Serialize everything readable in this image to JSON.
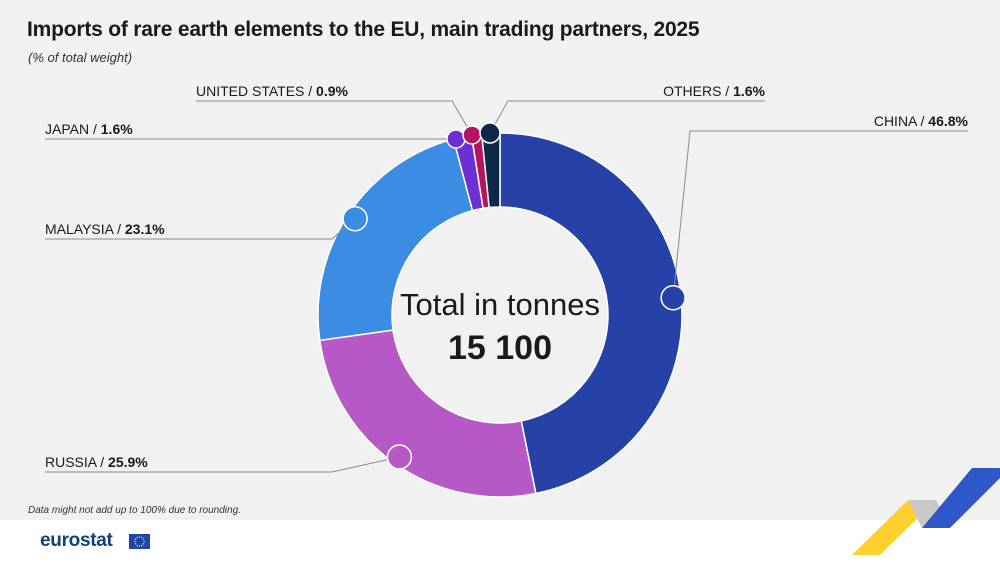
{
  "title": "Imports of rare earth elements to the EU, main trading partners, 2025",
  "subtitle": "(% of total weight)",
  "footnote": "Data might not add up to 100% due to rounding.",
  "logo": {
    "text": "eurostat"
  },
  "center": {
    "label": "Total in tonnes",
    "value": "15 100"
  },
  "chart_data": {
    "type": "pie",
    "variant": "donut",
    "unit": "% of total weight",
    "slices": [
      {
        "name": "CHINA",
        "value": 46.8,
        "label": "46.8%",
        "color": "#2742a6"
      },
      {
        "name": "RUSSIA",
        "value": 25.9,
        "label": "25.9%",
        "color": "#b658c6"
      },
      {
        "name": "MALAYSIA",
        "value": 23.1,
        "label": "23.1%",
        "color": "#3b8de3"
      },
      {
        "name": "JAPAN",
        "value": 1.6,
        "label": "1.6%",
        "color": "#6b2fd2"
      },
      {
        "name": "UNITED STATES",
        "value": 0.9,
        "label": "0.9%",
        "color": "#b4145e"
      },
      {
        "name": "OTHERS",
        "value": 1.6,
        "label": "1.6%",
        "color": "#0f2847"
      }
    ]
  }
}
